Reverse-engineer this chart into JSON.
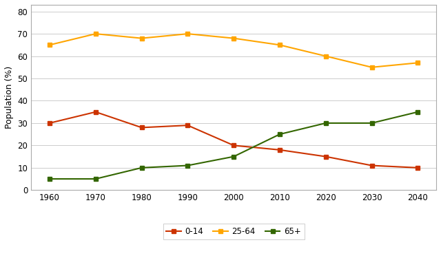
{
  "years": [
    1960,
    1970,
    1980,
    1990,
    2000,
    2010,
    2020,
    2030,
    2040
  ],
  "age_0_14": [
    30,
    35,
    28,
    29,
    20,
    18,
    15,
    11,
    10
  ],
  "age_25_64": [
    65,
    70,
    68,
    70,
    68,
    65,
    60,
    55,
    57
  ],
  "age_65_plus": [
    5,
    5,
    10,
    11,
    15,
    25,
    30,
    30,
    35
  ],
  "color_0_14": "#CC3300",
  "color_25_64": "#FFA500",
  "color_65_plus": "#336600",
  "ylabel": "Population (%)",
  "ylim": [
    0,
    83
  ],
  "yticks": [
    0,
    10,
    20,
    30,
    40,
    50,
    60,
    70,
    80
  ],
  "legend_labels": [
    "0-14",
    "25-64",
    "65+"
  ],
  "background_color": "#ffffff",
  "grid_color": "#cccccc",
  "border_color": "#aaaaaa",
  "marker": "s",
  "linewidth": 1.5,
  "markersize": 4.5,
  "tick_fontsize": 8.5,
  "ylabel_fontsize": 9,
  "legend_fontsize": 8.5
}
